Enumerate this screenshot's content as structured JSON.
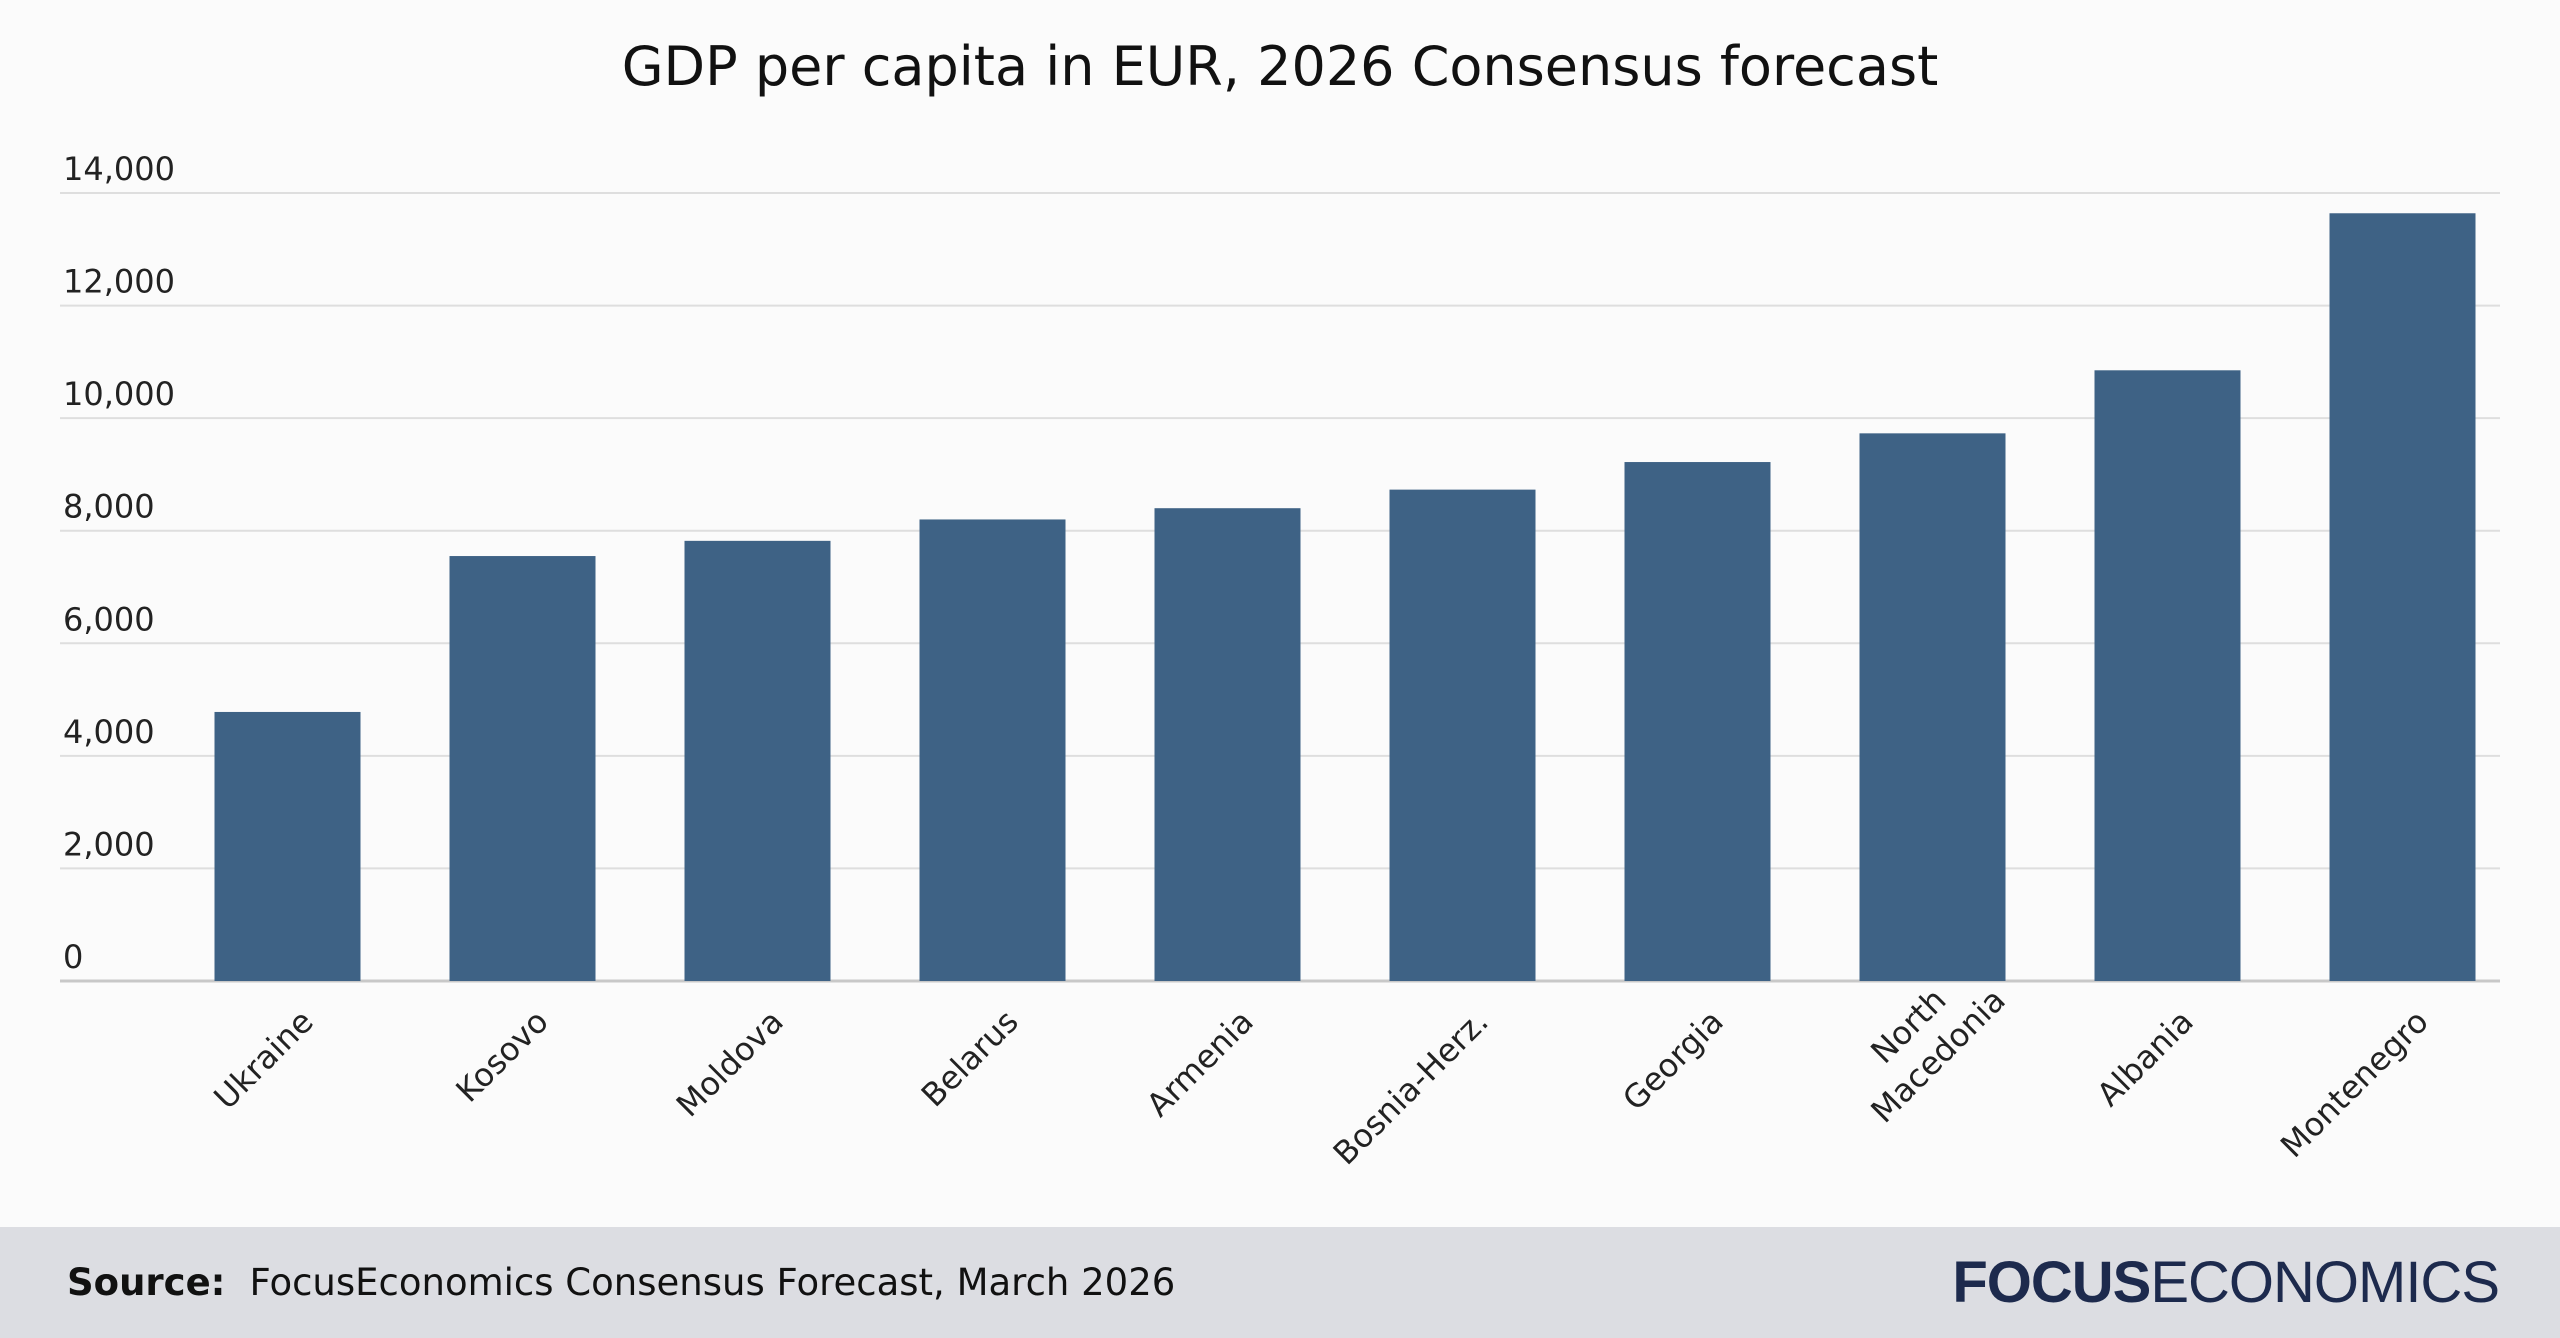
{
  "chart_data": {
    "type": "bar",
    "title": "GDP per capita in EUR, 2026 Consensus forecast",
    "xlabel": "",
    "ylabel": "",
    "ylim": [
      0,
      14000
    ],
    "yticks": [
      0,
      2000,
      4000,
      6000,
      8000,
      10000,
      12000,
      14000
    ],
    "ytick_labels": [
      "0",
      "2,000",
      "4,000",
      "6,000",
      "8,000",
      "10,000",
      "12,000",
      "14,000"
    ],
    "grid": true,
    "legend": "none",
    "bar_color": "#3e6285",
    "categories": [
      "Ukraine",
      "Kosovo",
      "Moldova",
      "Belarus",
      "Armenia",
      "Bosnia-Herz.",
      "Georgia",
      "North Macedonia",
      "Albania",
      "Montenegro"
    ],
    "category_label_lines": [
      [
        "Ukraine"
      ],
      [
        "Kosovo"
      ],
      [
        "Moldova"
      ],
      [
        "Belarus"
      ],
      [
        "Armenia"
      ],
      [
        "Bosnia-Herz."
      ],
      [
        "Georgia"
      ],
      [
        "North",
        "Macedonia"
      ],
      [
        "Albania"
      ],
      [
        "Montenegro"
      ]
    ],
    "values": [
      4780,
      7550,
      7820,
      8200,
      8400,
      8730,
      9220,
      9730,
      10850,
      13640
    ]
  },
  "footer": {
    "source_label": "Source:",
    "source_text": "FocusEconomics Consensus Forecast, March 2026",
    "logo_strong": "FOCUS",
    "logo_light": "ECONOMICS"
  },
  "colors": {
    "background": "#fbfbfb",
    "bar": "#3e6285",
    "footer_bg": "#dcdde2",
    "logo": "#1d2a4d"
  }
}
